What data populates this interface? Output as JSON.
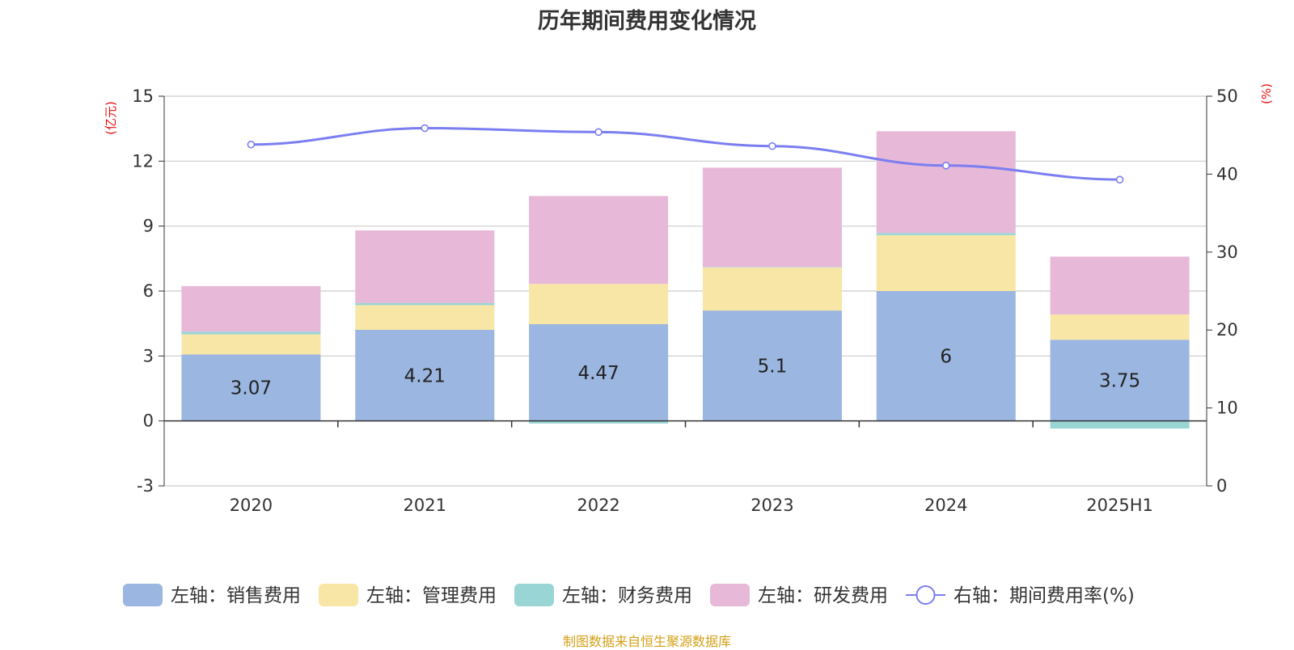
{
  "title": "历年期间费用变化情况",
  "source_note": "制图数据来自恒生聚源数据库",
  "chart_data": {
    "type": "bar",
    "stacked": true,
    "categories": [
      "2020",
      "2021",
      "2022",
      "2023",
      "2024",
      "2025H1"
    ],
    "series": [
      {
        "name": "左轴：销售费用",
        "axis": "left",
        "color": "#9bb6e0",
        "values": [
          3.07,
          4.21,
          4.47,
          5.1,
          6,
          3.75
        ],
        "show_labels": true
      },
      {
        "name": "左轴：管理费用",
        "axis": "left",
        "color": "#f8e6a6",
        "values": [
          0.93,
          1.14,
          1.86,
          1.99,
          2.58,
          1.17
        ]
      },
      {
        "name": "左轴：财务费用",
        "axis": "left",
        "color": "#99d5d5",
        "values": [
          0.12,
          0.1,
          -0.12,
          0.02,
          0.1,
          -0.35
        ]
      },
      {
        "name": "左轴：研发费用",
        "axis": "left",
        "color": "#e7b8d8",
        "values": [
          2.11,
          3.35,
          4.06,
          4.59,
          4.7,
          2.67
        ]
      }
    ],
    "line_series": {
      "name": "右轴：期间费用率(%)",
      "axis": "right",
      "color": "#7b7ef0",
      "values": [
        43.8,
        45.9,
        45.4,
        43.6,
        41.1,
        39.3
      ]
    },
    "left_axis": {
      "label": "(亿元)",
      "ylim": [
        -3,
        15
      ],
      "ticks": [
        "-3",
        "0",
        "3",
        "6",
        "9",
        "12",
        "15"
      ],
      "label_color": "#e8110f"
    },
    "right_axis": {
      "label": "(%)",
      "ylim": [
        0,
        50
      ],
      "ticks": [
        "0",
        "10",
        "20",
        "30",
        "40",
        "50"
      ],
      "label_color": "#e8110f"
    },
    "grid": true,
    "legend_position": "bottom"
  }
}
